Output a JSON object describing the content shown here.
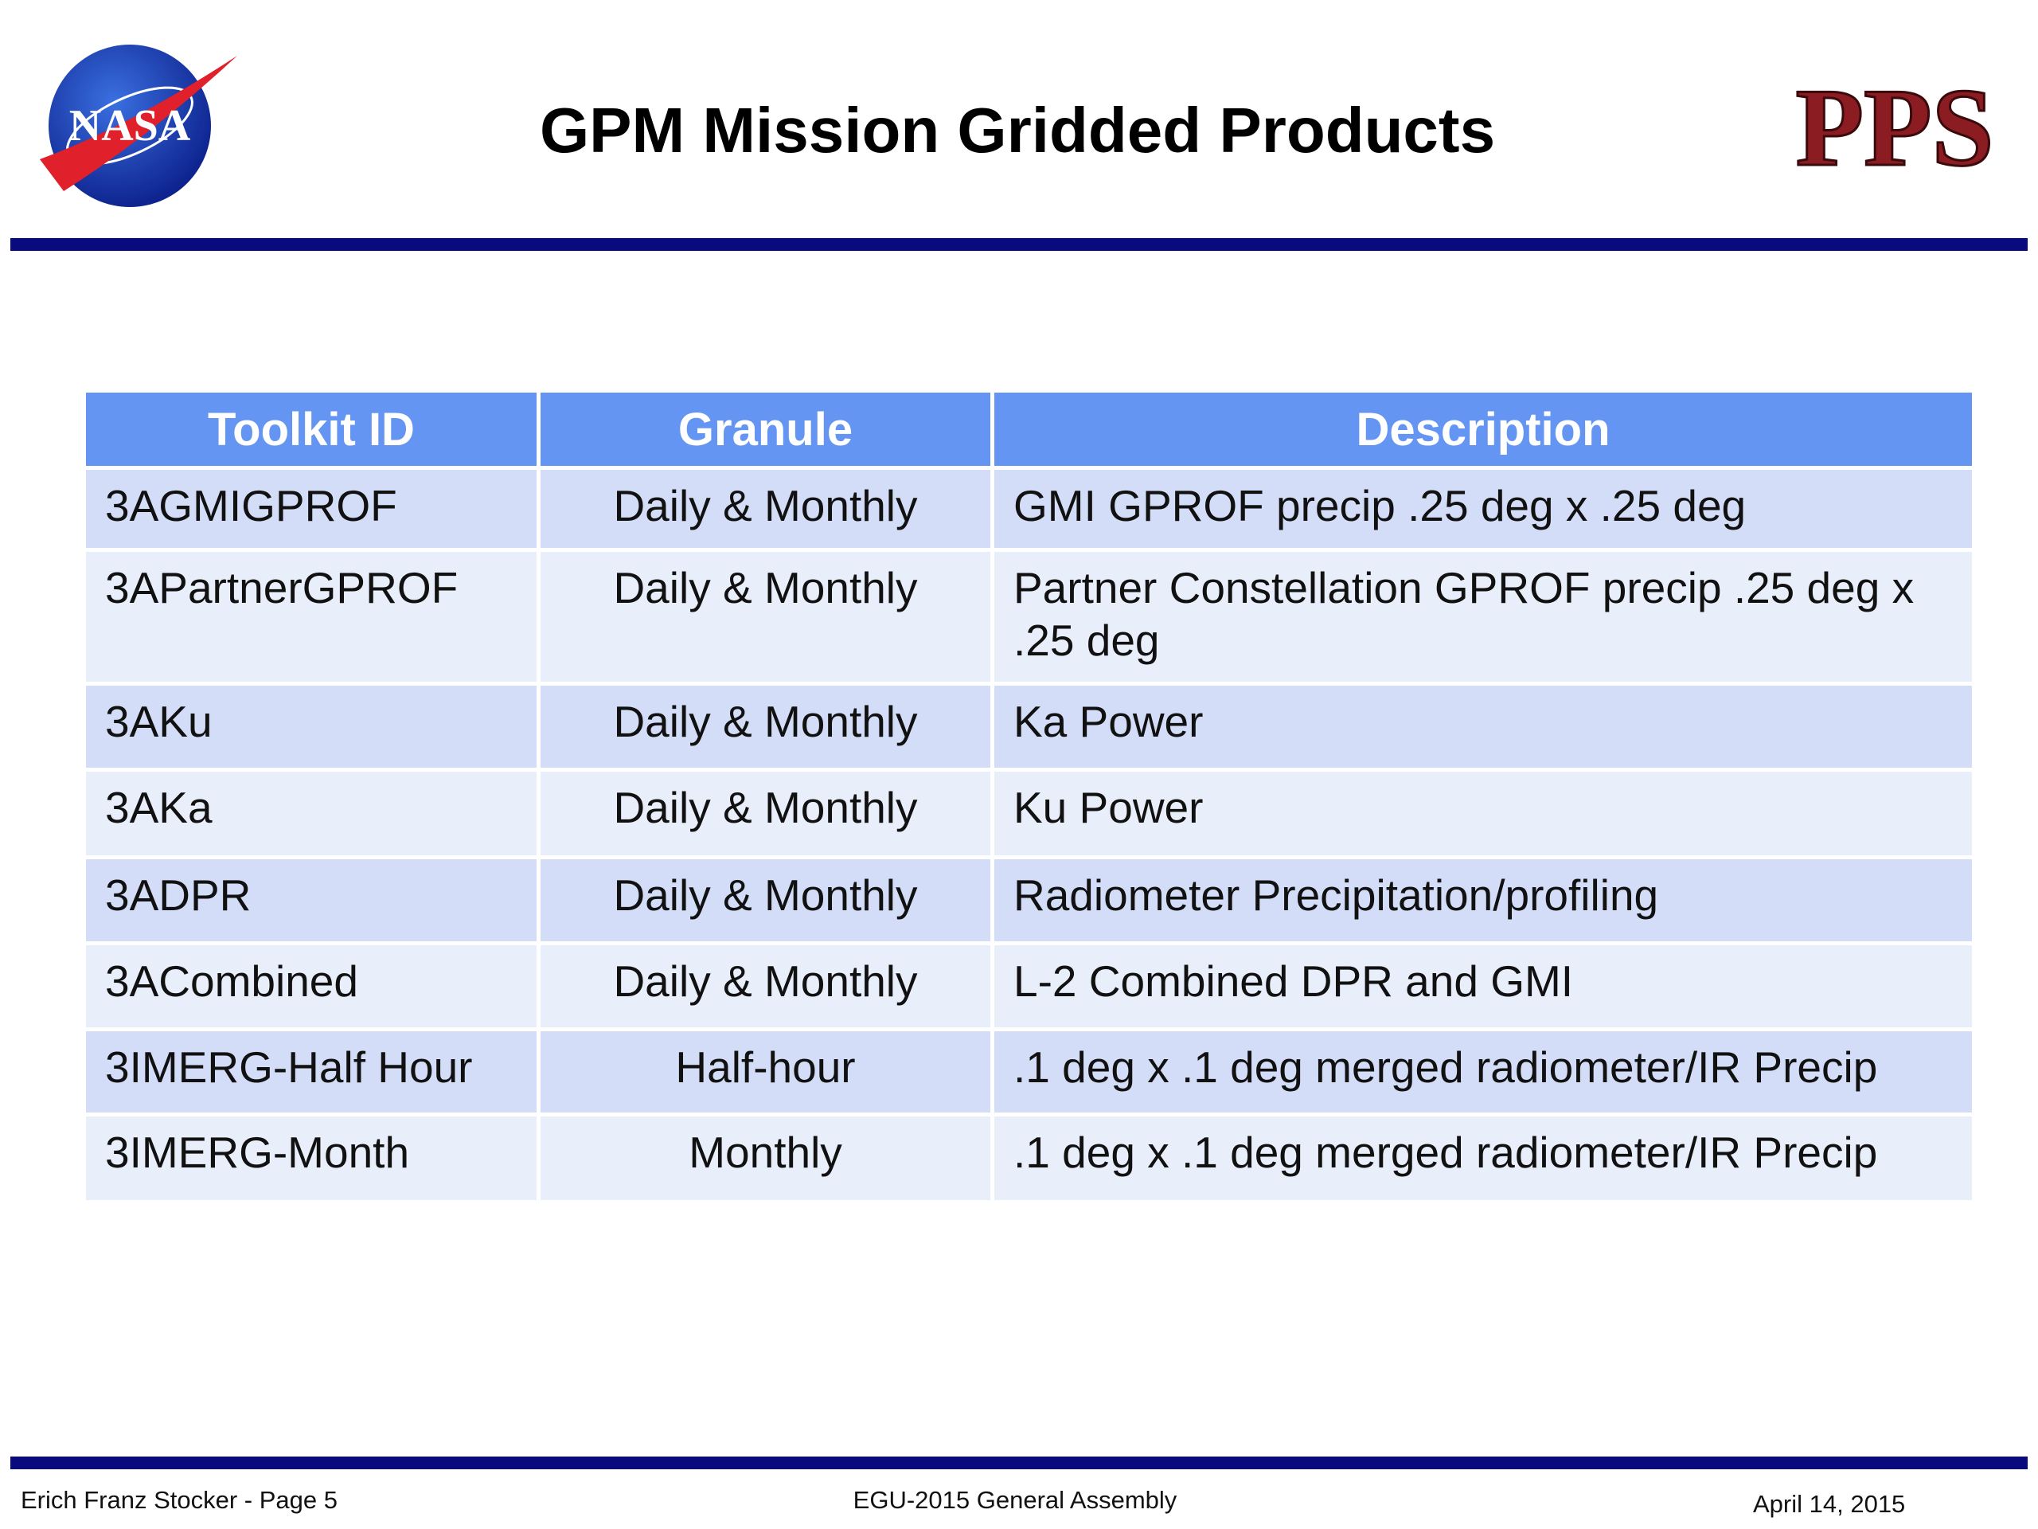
{
  "header": {
    "title": "GPM Mission Gridded Products",
    "logos": {
      "left": "NASA",
      "right": "PPS"
    }
  },
  "table": {
    "columns": [
      "Toolkit ID",
      "Granule",
      "Description"
    ],
    "rows": [
      [
        "3AGMIGPROF",
        "Daily & Monthly",
        "GMI GPROF precip .25 deg x .25 deg"
      ],
      [
        "3APartnerGPROF",
        "Daily & Monthly",
        "Partner Constellation GPROF precip .25 deg x .25 deg"
      ],
      [
        "3AKu",
        "Daily & Monthly",
        "Ka Power"
      ],
      [
        "3AKa",
        "Daily & Monthly",
        "Ku Power"
      ],
      [
        "3ADPR",
        "Daily & Monthly",
        "Radiometer Precipitation/profiling"
      ],
      [
        "3ACombined",
        "Daily & Monthly",
        "L-2 Combined DPR and GMI"
      ],
      [
        "3IMERG-Half Hour",
        "Half-hour",
        ".1 deg x .1 deg merged radiometer/IR Precip"
      ],
      [
        "3IMERG-Month",
        "Monthly",
        ".1 deg x .1 deg merged radiometer/IR Precip"
      ]
    ]
  },
  "footer": {
    "left": "Erich Franz Stocker - Page 5",
    "center": "EGU-2015 General Assembly",
    "right": "April 14, 2015"
  }
}
